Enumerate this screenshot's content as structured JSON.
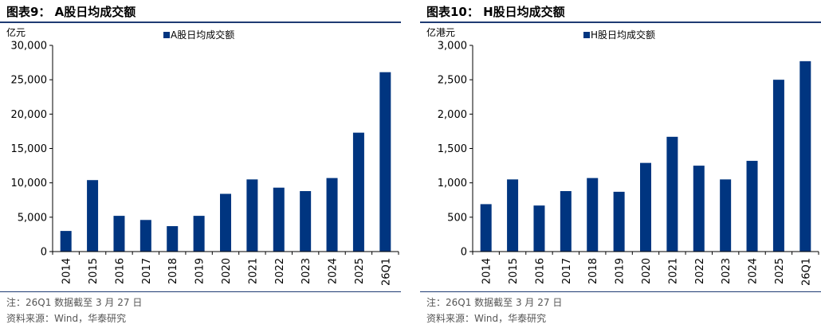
{
  "colors": {
    "bar": "#003580",
    "rule": "#1f3b73"
  },
  "charts": [
    {
      "figure_title": "图表9：  A股日均成交额",
      "note": "注：26Q1 数据截至 3 月 27 日",
      "source": "资料来源：Wind，华泰研究",
      "chart_data": {
        "type": "bar",
        "unit_label": "亿元",
        "categories": [
          "2014",
          "2015",
          "2016",
          "2017",
          "2018",
          "2019",
          "2020",
          "2021",
          "2022",
          "2023",
          "2024",
          "2025",
          "26Q1"
        ],
        "series": [
          {
            "name": "A股日均成交额",
            "values": [
              3000,
              10400,
              5200,
              4600,
              3700,
              5200,
              8400,
              10500,
              9300,
              8800,
              10700,
              17300,
              26100
            ]
          }
        ],
        "ylim": [
          0,
          30000
        ],
        "yticks": [
          0,
          5000,
          10000,
          15000,
          20000,
          25000,
          30000
        ],
        "ytick_labels": [
          "0",
          "5,000",
          "10,000",
          "15,000",
          "20,000",
          "25,000",
          "30,000"
        ],
        "legend": "top"
      }
    },
    {
      "figure_title": "图表10：  H股日均成交额",
      "note": "注：26Q1 数据截至 3 月 27 日",
      "source": "资料来源：Wind，华泰研究",
      "chart_data": {
        "type": "bar",
        "unit_label": "亿港元",
        "categories": [
          "2014",
          "2015",
          "2016",
          "2017",
          "2018",
          "2019",
          "2020",
          "2021",
          "2022",
          "2023",
          "2024",
          "2025",
          "26Q1"
        ],
        "series": [
          {
            "name": "H股日均成交额",
            "values": [
              690,
              1050,
              670,
              880,
              1070,
              870,
              1290,
              1670,
              1250,
              1050,
              1320,
              2500,
              2770
            ]
          }
        ],
        "ylim": [
          0,
          3000
        ],
        "yticks": [
          0,
          500,
          1000,
          1500,
          2000,
          2500,
          3000
        ],
        "ytick_labels": [
          "0",
          "500",
          "1,000",
          "1,500",
          "2,000",
          "2,500",
          "3,000"
        ],
        "legend": "top"
      }
    }
  ]
}
